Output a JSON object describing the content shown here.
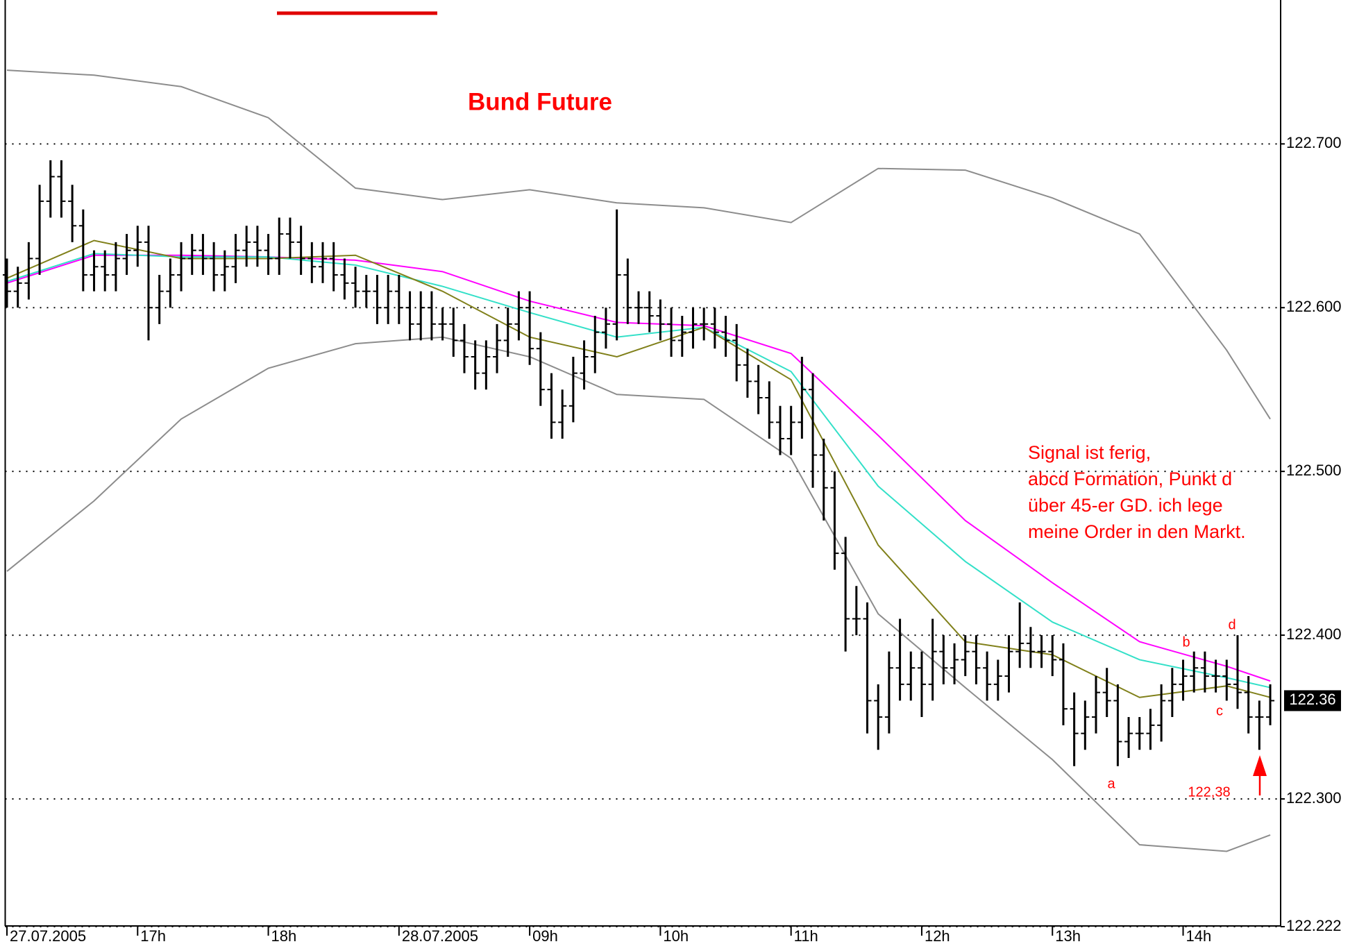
{
  "chart_data": {
    "type": "ohlc",
    "title": "Bund Future",
    "categories": [
      "27.07.2005",
      null,
      null,
      null,
      null,
      null,
      null,
      null,
      null,
      null,
      null,
      null,
      "17h",
      null,
      null,
      null,
      null,
      null,
      null,
      null,
      null,
      null,
      null,
      null,
      "18h",
      null,
      null,
      null,
      null,
      null,
      null,
      null,
      null,
      null,
      null,
      null,
      "28.07.2005",
      null,
      null,
      null,
      null,
      null,
      null,
      null,
      null,
      null,
      null,
      null,
      "09h",
      null,
      null,
      null,
      null,
      null,
      null,
      null,
      null,
      null,
      null,
      null,
      "10h",
      null,
      null,
      null,
      null,
      null,
      null,
      null,
      null,
      null,
      null,
      null,
      "11h",
      null,
      null,
      null,
      null,
      null,
      null,
      null,
      null,
      null,
      null,
      null,
      "12h",
      null,
      null,
      null,
      null,
      null,
      null,
      null,
      null,
      null,
      null,
      null,
      "13h",
      null,
      null,
      null,
      null,
      null,
      null,
      null,
      null,
      null,
      null,
      null,
      "14h",
      null,
      null,
      null,
      null,
      null,
      null,
      null,
      null
    ],
    "open": [
      122.62,
      122.61,
      122.615,
      122.63,
      122.665,
      122.68,
      122.665,
      122.65,
      122.62,
      122.625,
      122.62,
      122.63,
      122.635,
      122.64,
      122.6,
      122.61,
      122.62,
      122.63,
      122.635,
      122.63,
      122.62,
      122.625,
      122.635,
      122.64,
      122.635,
      122.63,
      122.645,
      122.64,
      122.63,
      122.625,
      122.63,
      122.62,
      122.615,
      122.61,
      122.61,
      122.6,
      122.61,
      122.6,
      122.59,
      122.6,
      122.59,
      122.59,
      122.58,
      122.57,
      122.56,
      122.57,
      122.58,
      122.59,
      122.6,
      122.575,
      122.55,
      122.53,
      122.54,
      122.56,
      122.57,
      122.585,
      122.59,
      122.62,
      122.6,
      122.6,
      122.595,
      122.59,
      122.58,
      122.585,
      122.59,
      122.59,
      122.585,
      122.58,
      122.565,
      122.555,
      122.545,
      122.53,
      122.52,
      122.53,
      122.55,
      122.51,
      122.49,
      122.45,
      122.41,
      122.41,
      122.36,
      122.35,
      122.38,
      122.37,
      122.38,
      122.37,
      122.39,
      122.38,
      122.385,
      122.39,
      122.38,
      122.37,
      122.375,
      122.39,
      122.395,
      122.39,
      122.39,
      122.385,
      122.355,
      122.34,
      122.35,
      122.365,
      122.36,
      122.335,
      122.34,
      122.34,
      122.345,
      122.36,
      122.37,
      122.375,
      122.38,
      122.375,
      122.375,
      122.37,
      122.365,
      122.35,
      122.35
    ],
    "high": [
      122.63,
      122.625,
      122.64,
      122.675,
      122.69,
      122.69,
      122.675,
      122.66,
      122.635,
      122.635,
      122.64,
      122.645,
      122.65,
      122.65,
      122.62,
      122.63,
      122.64,
      122.645,
      122.645,
      122.64,
      122.635,
      122.645,
      122.65,
      122.65,
      122.645,
      122.655,
      122.655,
      122.65,
      122.64,
      122.64,
      122.64,
      122.63,
      122.625,
      122.62,
      122.62,
      122.62,
      122.62,
      122.61,
      122.61,
      122.61,
      122.6,
      122.6,
      122.59,
      122.58,
      122.58,
      122.59,
      122.6,
      122.61,
      122.61,
      122.585,
      122.56,
      122.55,
      122.57,
      122.58,
      122.595,
      122.6,
      122.66,
      122.63,
      122.61,
      122.61,
      122.605,
      122.6,
      122.595,
      122.6,
      122.6,
      122.6,
      122.595,
      122.59,
      122.575,
      122.565,
      122.555,
      122.54,
      122.54,
      122.57,
      122.56,
      122.52,
      122.5,
      122.46,
      122.43,
      122.42,
      122.37,
      122.39,
      122.41,
      122.39,
      122.39,
      122.41,
      122.4,
      122.395,
      122.4,
      122.4,
      122.39,
      122.385,
      122.4,
      122.42,
      122.405,
      122.4,
      122.4,
      122.395,
      122.365,
      122.36,
      122.375,
      122.38,
      122.37,
      122.35,
      122.35,
      122.355,
      122.37,
      122.38,
      122.385,
      122.39,
      122.39,
      122.385,
      122.385,
      122.4,
      122.375,
      122.36,
      122.37
    ],
    "low": [
      122.6,
      122.6,
      122.605,
      122.62,
      122.655,
      122.655,
      122.64,
      122.61,
      122.61,
      122.61,
      122.61,
      122.62,
      122.625,
      122.58,
      122.59,
      122.6,
      122.61,
      122.62,
      122.62,
      122.61,
      122.61,
      122.615,
      122.625,
      122.625,
      122.62,
      122.62,
      122.63,
      122.62,
      122.615,
      122.615,
      122.61,
      122.605,
      122.6,
      122.6,
      122.59,
      122.59,
      122.59,
      122.58,
      122.58,
      122.58,
      122.58,
      122.57,
      122.56,
      122.55,
      122.55,
      122.56,
      122.57,
      122.58,
      122.565,
      122.54,
      122.52,
      122.52,
      122.53,
      122.55,
      122.56,
      122.575,
      122.58,
      122.59,
      122.59,
      122.585,
      122.58,
      122.57,
      122.57,
      122.575,
      122.58,
      122.575,
      122.57,
      122.555,
      122.545,
      122.535,
      122.52,
      122.51,
      122.51,
      122.52,
      122.49,
      122.47,
      122.44,
      122.39,
      122.4,
      122.34,
      122.33,
      122.34,
      122.36,
      122.36,
      122.35,
      122.36,
      122.37,
      122.37,
      122.375,
      122.37,
      122.36,
      122.36,
      122.365,
      122.38,
      122.38,
      122.38,
      122.375,
      122.345,
      122.32,
      122.33,
      122.34,
      122.35,
      122.32,
      122.325,
      122.33,
      122.33,
      122.335,
      122.35,
      122.36,
      122.365,
      122.365,
      122.365,
      122.36,
      122.355,
      122.34,
      122.33,
      122.345
    ],
    "close": [
      122.61,
      122.615,
      122.63,
      122.665,
      122.68,
      122.665,
      122.65,
      122.62,
      122.625,
      122.62,
      122.63,
      122.635,
      122.64,
      122.6,
      122.61,
      122.62,
      122.63,
      122.635,
      122.63,
      122.62,
      122.625,
      122.635,
      122.64,
      122.635,
      122.63,
      122.645,
      122.64,
      122.63,
      122.625,
      122.63,
      122.62,
      122.615,
      122.61,
      122.61,
      122.6,
      122.61,
      122.6,
      122.59,
      122.6,
      122.59,
      122.59,
      122.58,
      122.57,
      122.56,
      122.57,
      122.58,
      122.59,
      122.6,
      122.575,
      122.55,
      122.53,
      122.54,
      122.56,
      122.57,
      122.585,
      122.59,
      122.62,
      122.6,
      122.6,
      122.595,
      122.59,
      122.58,
      122.585,
      122.59,
      122.59,
      122.585,
      122.58,
      122.565,
      122.555,
      122.545,
      122.53,
      122.52,
      122.53,
      122.55,
      122.51,
      122.49,
      122.45,
      122.41,
      122.41,
      122.36,
      122.35,
      122.38,
      122.37,
      122.38,
      122.37,
      122.39,
      122.38,
      122.385,
      122.39,
      122.38,
      122.37,
      122.375,
      122.39,
      122.395,
      122.39,
      122.39,
      122.385,
      122.355,
      122.34,
      122.35,
      122.365,
      122.36,
      122.335,
      122.34,
      122.34,
      122.345,
      122.36,
      122.37,
      122.375,
      122.38,
      122.375,
      122.375,
      122.37,
      122.365,
      122.35,
      122.35,
      122.36
    ],
    "color": "#000000",
    "lines": [
      {
        "color": "#8c8c8c",
        "x": [
          0,
          8,
          16,
          24,
          32,
          40,
          48,
          56,
          64,
          72,
          80,
          88,
          96,
          104,
          112,
          116
        ],
        "values": [
          122.745,
          122.742,
          122.735,
          122.716,
          122.673,
          122.666,
          122.672,
          122.664,
          122.661,
          122.652,
          122.685,
          122.684,
          122.667,
          122.645,
          122.574,
          122.532
        ]
      },
      {
        "color": "#8c8c8c",
        "x": [
          0,
          8,
          16,
          24,
          32,
          40,
          48,
          56,
          64,
          72,
          80,
          88,
          96,
          104,
          112,
          116
        ],
        "values": [
          122.439,
          122.482,
          122.532,
          122.563,
          122.578,
          122.582,
          122.57,
          122.547,
          122.544,
          122.508,
          122.413,
          122.368,
          122.324,
          122.272,
          122.268,
          122.278
        ]
      },
      {
        "color": "#ff00ff",
        "x": [
          0,
          8,
          16,
          24,
          32,
          40,
          48,
          56,
          64,
          72,
          80,
          88,
          96,
          104,
          112,
          116
        ],
        "values": [
          122.615,
          122.632,
          122.632,
          122.631,
          122.629,
          122.622,
          122.604,
          122.591,
          122.589,
          122.572,
          122.522,
          122.47,
          122.432,
          122.396,
          122.381,
          122.372
        ]
      },
      {
        "color": "#33e0c8",
        "x": [
          0,
          8,
          16,
          24,
          32,
          40,
          48,
          56,
          64,
          72,
          80,
          88,
          96,
          104,
          112,
          116
        ],
        "values": [
          122.616,
          122.633,
          122.631,
          122.631,
          122.626,
          122.613,
          122.597,
          122.582,
          122.588,
          122.561,
          122.491,
          122.445,
          122.408,
          122.385,
          122.374,
          122.368
        ]
      },
      {
        "color": "#80801a",
        "x": [
          0,
          8,
          16,
          24,
          32,
          40,
          48,
          56,
          64,
          72,
          80,
          88,
          96,
          104,
          112,
          116
        ],
        "values": [
          122.618,
          122.641,
          122.63,
          122.63,
          122.632,
          122.61,
          122.582,
          122.57,
          122.588,
          122.556,
          122.455,
          122.396,
          122.388,
          122.362,
          122.369,
          122.362
        ]
      }
    ],
    "ylim": [
      122.222,
      122.79
    ],
    "yticks": [
      {
        "value": 122.222,
        "label": "122.222"
      },
      {
        "value": 122.3,
        "label": "122.300"
      },
      {
        "value": 122.4,
        "label": "122.400"
      },
      {
        "value": 122.5,
        "label": "122.500"
      },
      {
        "value": 122.6,
        "label": "122.600"
      },
      {
        "value": 122.7,
        "label": "122.700"
      }
    ],
    "grid": true,
    "last_price": 122.36,
    "annotations": {
      "signal": [
        "Signal ist ferig,",
        "abcd Formation, Punkt d",
        "über 45-er GD. ich lege",
        "meine Order in den Markt."
      ],
      "points": [
        "a",
        "b",
        "c",
        "d"
      ],
      "price_note": "122,38"
    }
  }
}
